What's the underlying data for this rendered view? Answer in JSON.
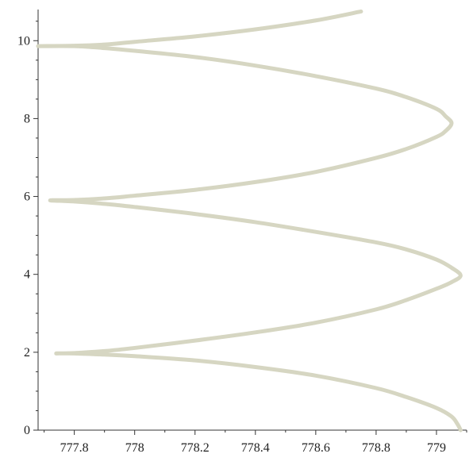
{
  "chart_data": {
    "type": "line",
    "title": "",
    "xlabel": "",
    "ylabel": "",
    "xlim": [
      777.68,
      779.1
    ],
    "ylim": [
      0,
      10.8
    ],
    "x_ticks": [
      777.8,
      778,
      778.2,
      778.4,
      778.6,
      778.8,
      779
    ],
    "x_tick_labels": [
      "777.8",
      "778",
      "778.2",
      "778.4",
      "778.6",
      "778.8",
      "779"
    ],
    "y_ticks": [
      0,
      2,
      4,
      6,
      8,
      10
    ],
    "y_tick_labels": [
      "0",
      "2",
      "4",
      "6",
      "8",
      "10"
    ],
    "grid": false,
    "legend": "none",
    "line_color": "#d6d6c2",
    "series": [
      {
        "x": [
          779.08,
          779.07,
          779.05,
          779.0,
          778.9,
          778.8,
          778.6,
          778.4,
          778.2,
          778.0,
          777.9,
          777.8,
          777.74,
          777.8,
          777.9,
          778.0,
          778.2,
          778.4,
          778.6,
          778.8,
          778.9,
          779.0,
          779.05,
          779.08,
          779.05,
          779.0,
          778.9,
          778.8,
          778.6,
          778.4,
          778.2,
          778.0,
          777.9,
          777.8,
          777.72,
          777.8,
          777.9,
          778.0,
          778.2,
          778.4,
          778.6,
          778.8,
          778.9,
          779.0,
          779.03,
          779.05,
          779.03,
          779.0,
          778.9,
          778.8,
          778.6,
          778.4,
          778.2,
          778.0,
          777.9,
          777.8,
          777.68,
          777.8,
          777.9,
          778.0,
          778.2,
          778.4,
          778.6,
          778.75
        ],
        "y": [
          0.0,
          0.15,
          0.35,
          0.57,
          0.85,
          1.08,
          1.4,
          1.62,
          1.79,
          1.9,
          1.94,
          1.97,
          1.97,
          1.98,
          2.03,
          2.11,
          2.3,
          2.51,
          2.76,
          3.1,
          3.34,
          3.63,
          3.8,
          3.97,
          4.17,
          4.38,
          4.64,
          4.82,
          5.09,
          5.34,
          5.55,
          5.73,
          5.81,
          5.87,
          5.9,
          5.91,
          5.95,
          6.02,
          6.17,
          6.37,
          6.63,
          6.99,
          7.22,
          7.53,
          7.68,
          7.88,
          8.06,
          8.25,
          8.55,
          8.77,
          9.09,
          9.36,
          9.58,
          9.74,
          9.81,
          9.86,
          9.86,
          9.87,
          9.9,
          9.97,
          10.11,
          10.29,
          10.52,
          10.75
        ]
      }
    ]
  }
}
